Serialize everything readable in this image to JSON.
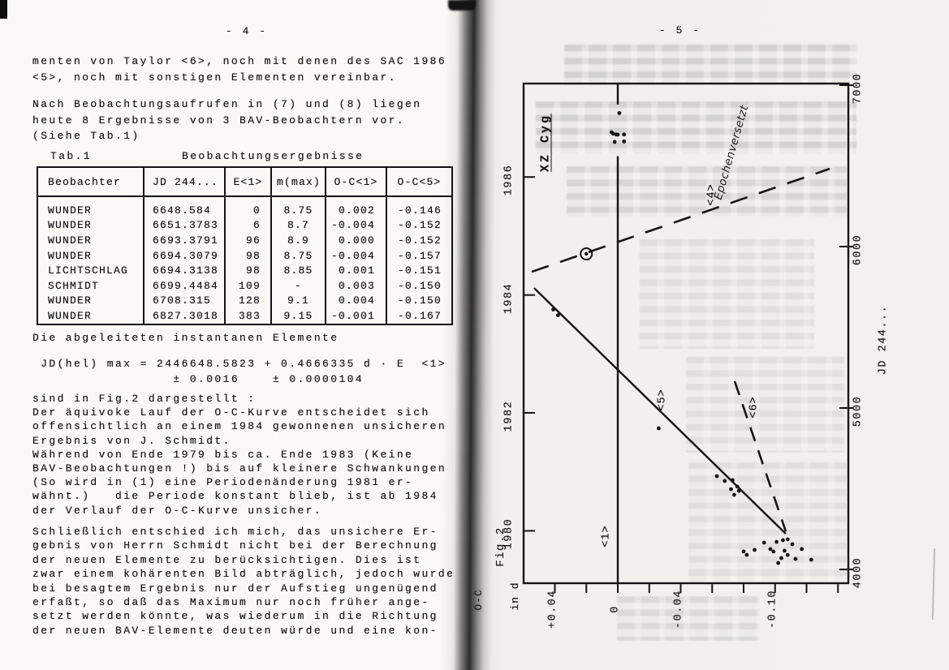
{
  "left_page": {
    "page_number": "- 4 -",
    "para1": [
      "menten von Taylor <6>, noch mit denen des SAC 1986",
      "<5>, noch mit sonstigen Elementen vereinbar."
    ],
    "para2": [
      "Nach Beobachtungsaufrufen in (7) und (8) liegen",
      "heute 8 Ergebnisse von 3 BAV-Beobachtern vor.",
      "(Siehe Tab.1)"
    ],
    "table_caption_label": "Tab.1",
    "table_caption_title": "Beobachtungsergebnisse",
    "table": {
      "headers": [
        "Beobachter",
        "JD 244...",
        "E<1>",
        "m(max)",
        "O-C<1>",
        "O-C<5>"
      ],
      "rows": [
        [
          "WUNDER",
          "6648.584",
          "0",
          "8.75",
          "0.002",
          "-0.146"
        ],
        [
          "WUNDER",
          "6651.3783",
          "6",
          "8.7",
          "-0.004",
          "-0.152"
        ],
        [
          "WUNDER",
          "6693.3791",
          "96",
          "8.9",
          "0.000",
          "-0.152"
        ],
        [
          "WUNDER",
          "6694.3079",
          "98",
          "8.75",
          "-0.004",
          "-0.157"
        ],
        [
          "LICHTSCHLAG",
          "6694.3138",
          "98",
          "8.85",
          "0.001",
          "-0.151"
        ],
        [
          "SCHMIDT",
          "6699.4484",
          "109",
          "-",
          "0.003",
          "-0.150"
        ],
        [
          "WUNDER",
          "6708.315",
          "128",
          "9.1",
          "0.004",
          "-0.150"
        ],
        [
          "WUNDER",
          "6827.3018",
          "383",
          "9.15",
          "-0.001",
          "-0.167"
        ]
      ]
    },
    "para3": [
      "Die abgeleiteten instantanen Elemente"
    ],
    "formula": [
      " JD(hel) max = 2446648.5823 + 0.4666335 d · E  <1>",
      "                 ± 0.0016    ± 0.0000104"
    ],
    "para4": [
      "sind in Fig.2 dargestellt :",
      "Der äquivoke Lauf der O-C-Kurve entscheidet sich",
      "offensichtlich an einem 1984 gewonnenen unsicheren",
      "Ergebnis von J. Schmidt.",
      "Während von Ende 1979 bis ca. Ende 1983 (Keine",
      "BAV-Beobachtungen !) bis auf kleinere Schwankungen",
      "(So wird in (1) eine Periodenänderung 1981 er-",
      "wähnt.)   die Periode konstant blieb, ist ab 1984",
      "der Verlauf der O-C-Kurve unsicher."
    ],
    "para5": [
      "Schließlich entschied ich mich, das unsichere Er-",
      "gebnis von Herrn Schmidt nicht bei der Berechnung",
      "der neuen Elemente zu berücksichtigen. Dies ist",
      "zwar einem kohärenten Bild abträglich, jedoch wurde",
      "bei besagtem Ergebnis nur der Aufstieg ungenügend",
      "erfaßt, so daß das Maximum nur noch früher ange-",
      "setzt werden könnte, was wiederum in die Richtung",
      "der neuen BAV-Elemente deuten würde und eine kon-"
    ]
  },
  "right_page": {
    "page_number": "- 5 -",
    "figure_label": "Fig.2",
    "star_name": "XZ Cyg",
    "epoch_note": "Epochenversetzt",
    "jd_axis_label": "JD 244...",
    "oc_axis_label_line1": "O-C",
    "oc_axis_label_line2": "in d"
  },
  "chart_data": {
    "type": "scatter",
    "title": "XZ Cyg",
    "xlabel": "JD 244...",
    "ylabel": "O-C in d",
    "xlim": [
      3918,
      7010
    ],
    "ylim": [
      -0.148,
      0.06
    ],
    "grid": false,
    "orientation_note": "figure printed rotated 90 deg on page; time axis runs up the page",
    "jd_ticks": [
      {
        "label": "7000",
        "jd": 7000
      },
      {
        "label": "6000",
        "jd": 6000
      },
      {
        "label": "5000",
        "jd": 5000
      },
      {
        "label": "4000",
        "jd": 4000
      }
    ],
    "year_ticks": [
      {
        "label": "1986",
        "jd": 6431
      },
      {
        "label": "1984",
        "jd": 5700
      },
      {
        "label": "1982",
        "jd": 4970
      },
      {
        "label": "1980",
        "jd": 4239
      }
    ],
    "oc_ticks": [
      0.04,
      0.02,
      0,
      -0.02,
      -0.04,
      -0.06,
      -0.08,
      -0.1,
      -0.12,
      -0.14
    ],
    "oc_tick_labels": [
      {
        "value": 0.04,
        "label": "+0.04"
      },
      {
        "value": 0,
        "label": "0"
      },
      {
        "value": -0.04,
        "label": "-0.04"
      },
      {
        "value": -0.1,
        "label": "-0.10"
      }
    ],
    "lines": [
      {
        "name": "<1>",
        "style": "solid",
        "segments": [
          [
            [
              7010,
              0
            ],
            [
              6880,
              0
            ]
          ],
          [
            [
              6560,
              0
            ],
            [
              3918,
              0
            ]
          ]
        ]
      },
      {
        "name": "<4>",
        "style": "dashed",
        "note": "Epochenversetzt",
        "segments": [
          [
            [
              5844,
              0.0547
            ],
            [
              6482,
              -0.1347
            ]
          ]
        ]
      },
      {
        "name": "<5>",
        "style": "solid",
        "segments": [
          [
            [
              5743,
              0.0532
            ],
            [
              4221,
              -0.1068
            ]
          ]
        ]
      },
      {
        "name": "<6>",
        "style": "dashed",
        "segments": [
          [
            [
              5166,
              -0.0743
            ],
            [
              4236,
              -0.1068
            ]
          ]
        ]
      }
    ],
    "points": [
      [
        6827.3,
        -0.001
      ],
      [
        6708.3,
        0.004
      ],
      [
        6699.4,
        0.003
      ],
      [
        6694.3,
        0.001
      ],
      [
        6694.3,
        -0.004
      ],
      [
        6693.4,
        0.0
      ],
      [
        6651.4,
        -0.004
      ],
      [
        6648.6,
        0.002
      ],
      [
        5610,
        0.041
      ],
      [
        5575,
        0.038
      ],
      [
        4874,
        -0.026
      ],
      [
        4578,
        -0.063
      ],
      [
        4548,
        -0.068
      ],
      [
        4553,
        -0.073
      ],
      [
        4497,
        -0.072
      ],
      [
        4513,
        -0.076
      ],
      [
        4487,
        -0.077
      ],
      [
        4462,
        -0.074
      ],
      [
        4121,
        -0.087
      ],
      [
        4166,
        -0.093
      ],
      [
        4126,
        -0.097
      ],
      [
        4111,
        -0.099
      ],
      [
        4171,
        -0.101
      ],
      [
        4181,
        -0.105
      ],
      [
        4186,
        -0.108
      ],
      [
        4156,
        -0.111
      ],
      [
        4116,
        -0.106
      ],
      [
        4090,
        -0.108
      ],
      [
        4070,
        -0.104
      ],
      [
        4065,
        -0.113
      ],
      [
        4060,
        -0.123
      ],
      [
        4040,
        -0.102
      ],
      [
        4090,
        -0.082
      ],
      [
        4111,
        -0.08
      ],
      [
        4126,
        -0.117
      ]
    ],
    "circled_point": [
      5955,
      0.02
    ]
  }
}
